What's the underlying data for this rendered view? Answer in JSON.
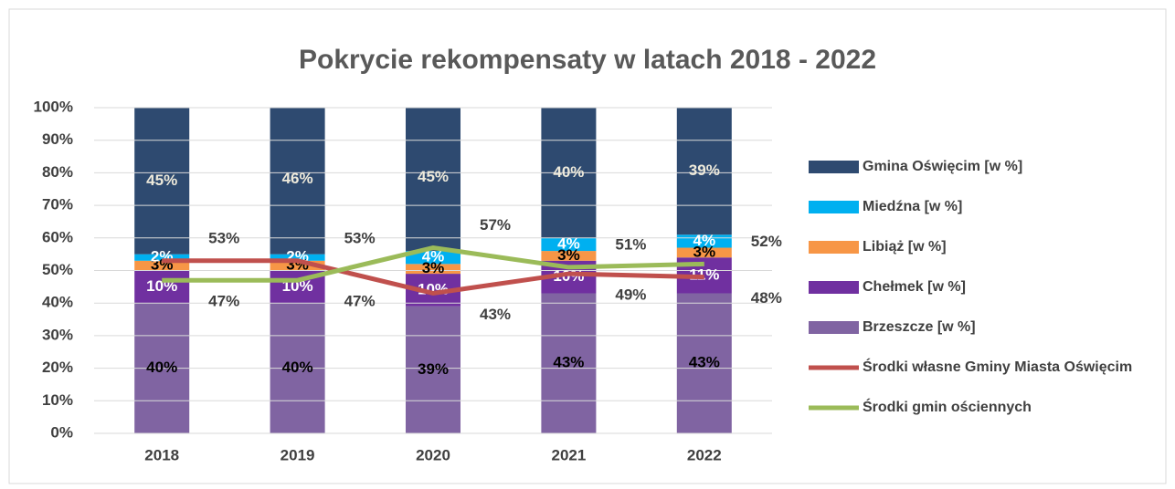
{
  "chart_data": {
    "type": "bar",
    "stacked": true,
    "title": "Pokrycie rekompensaty w latach 2018 - 2022",
    "categories": [
      "2018",
      "2019",
      "2020",
      "2021",
      "2022"
    ],
    "series": [
      {
        "name": "Brzeszcze [w %]",
        "color": "#8064a2",
        "label_color": "#000000",
        "values": [
          40,
          40,
          39,
          43,
          43
        ],
        "value_labels": [
          "40%",
          "40%",
          "39%",
          "43%",
          "43%"
        ]
      },
      {
        "name": "Chełmek [w %]",
        "color": "#7030a0",
        "label_color": "#ffffff",
        "values": [
          10,
          10,
          10,
          10,
          11
        ],
        "value_labels": [
          "10%",
          "10%",
          "10%",
          "10%",
          "11%"
        ]
      },
      {
        "name": "Libiąż [w %]",
        "color": "#f79646",
        "label_color": "#000000",
        "values": [
          3,
          3,
          3,
          3,
          3
        ],
        "value_labels": [
          "3%",
          "3%",
          "3%",
          "3%",
          "3%"
        ]
      },
      {
        "name": "Miedźna [w %]",
        "color": "#00b0f0",
        "label_color": "#ffffff",
        "values": [
          2,
          2,
          4,
          4,
          4
        ],
        "value_labels": [
          "2%",
          "2%",
          "4%",
          "4%",
          "4%"
        ]
      },
      {
        "name": "Gmina Oświęcim [w %]",
        "color": "#2e4a70",
        "label_color": "#eeeadb",
        "values": [
          45,
          46,
          45,
          40,
          39
        ],
        "value_labels": [
          "45%",
          "46%",
          "45%",
          "40%",
          "39%"
        ]
      },
      {
        "name": "Środki własne Gminy Miasta Oświęcim",
        "type": "line",
        "color": "#c0504d",
        "values": [
          53,
          53,
          43,
          49,
          48
        ],
        "value_labels": [
          "53%",
          "53%",
          "43%",
          "49%",
          "48%"
        ]
      },
      {
        "name": "Środki gmin ościennych",
        "type": "line",
        "color": "#9bbb59",
        "values": [
          47,
          47,
          57,
          51,
          52
        ],
        "value_labels": [
          "47%",
          "47%",
          "57%",
          "51%",
          "52%"
        ]
      }
    ],
    "ylim": [
      0,
      100
    ],
    "yticks": [
      {
        "value": 0,
        "label": "0%"
      },
      {
        "value": 10,
        "label": "10%"
      },
      {
        "value": 20,
        "label": "20%"
      },
      {
        "value": 30,
        "label": "30%"
      },
      {
        "value": 40,
        "label": "40%"
      },
      {
        "value": 50,
        "label": "50%"
      },
      {
        "value": 60,
        "label": "60%"
      },
      {
        "value": 70,
        "label": "70%"
      },
      {
        "value": 80,
        "label": "80%"
      },
      {
        "value": 90,
        "label": "90%"
      },
      {
        "value": 100,
        "label": "100%"
      }
    ],
    "grid": true,
    "legend": "right"
  }
}
